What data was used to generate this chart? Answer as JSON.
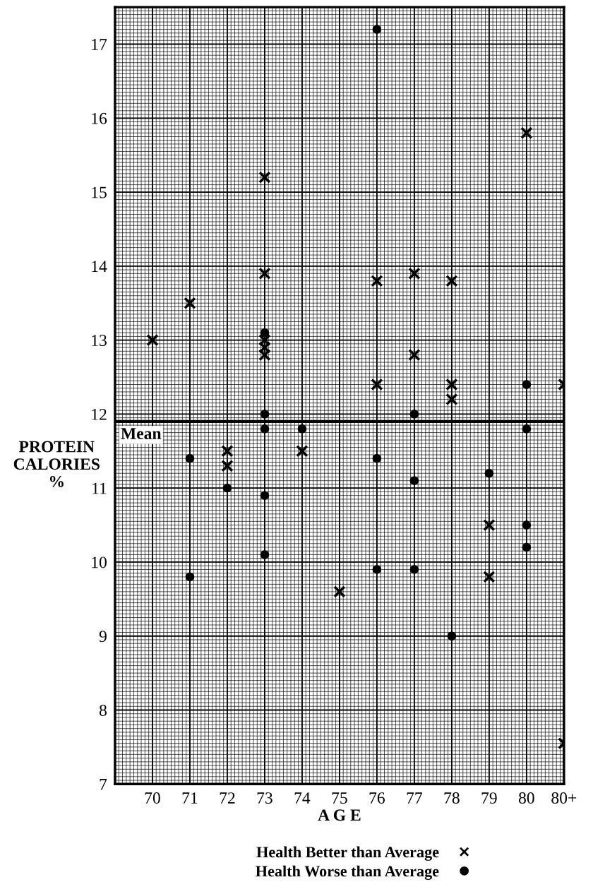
{
  "chart_data": {
    "type": "scatter",
    "xlabel": "A G E",
    "ylabel": "PROTEIN\nCALORIES\n%",
    "xlim": [
      69,
      81
    ],
    "xticks": [
      70,
      71,
      72,
      73,
      74,
      75,
      76,
      77,
      78,
      79,
      80,
      {
        "value": 81,
        "label": "80+"
      }
    ],
    "ylim": [
      7,
      17.5
    ],
    "yticks": [
      7,
      8,
      9,
      10,
      11,
      12,
      13,
      14,
      15,
      16,
      17
    ],
    "grid": true,
    "legend": "bottom",
    "tick_labels": "xy",
    "ref_lines": [
      {
        "axis": "y",
        "value": 11.9,
        "label": "Mean",
        "color": "#000000"
      }
    ],
    "series": [
      {
        "name": "Health Better than Average",
        "color": "#000000",
        "marker": "cross",
        "x": [
          70,
          71,
          72,
          72,
          73,
          73,
          73,
          73,
          73,
          74,
          75,
          76,
          76,
          77,
          77,
          78,
          78,
          78,
          79,
          79,
          80,
          81,
          81
        ],
        "values": [
          13.0,
          13.5,
          11.5,
          11.3,
          15.2,
          13.9,
          13.0,
          12.9,
          12.8,
          11.5,
          9.6,
          13.8,
          12.4,
          13.9,
          12.8,
          13.8,
          12.4,
          12.2,
          10.5,
          9.8,
          15.8,
          12.4,
          7.55
        ]
      },
      {
        "name": "Health Worse than Average",
        "color": "#000000",
        "marker": "circle",
        "x": [
          71,
          71,
          72,
          73,
          73,
          73,
          73,
          73,
          74,
          76,
          76,
          76,
          77,
          77,
          77,
          78,
          79,
          80,
          80,
          80,
          80
        ],
        "values": [
          11.4,
          9.8,
          11.0,
          13.1,
          12.0,
          11.8,
          10.9,
          10.1,
          11.8,
          17.2,
          11.4,
          9.9,
          12.0,
          11.1,
          9.9,
          9.0,
          11.2,
          12.4,
          11.8,
          10.5,
          10.2
        ]
      }
    ]
  }
}
